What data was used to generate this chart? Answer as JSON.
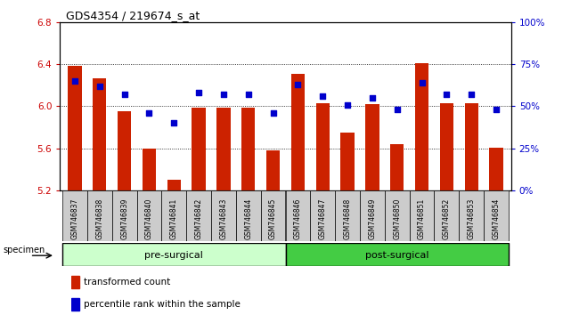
{
  "title": "GDS4354 / 219674_s_at",
  "samples": [
    "GSM746837",
    "GSM746838",
    "GSM746839",
    "GSM746840",
    "GSM746841",
    "GSM746842",
    "GSM746843",
    "GSM746844",
    "GSM746845",
    "GSM746846",
    "GSM746847",
    "GSM746848",
    "GSM746849",
    "GSM746850",
    "GSM746851",
    "GSM746852",
    "GSM746853",
    "GSM746854"
  ],
  "bar_values": [
    6.38,
    6.27,
    5.95,
    5.6,
    5.3,
    5.99,
    5.99,
    5.99,
    5.58,
    6.31,
    6.03,
    5.75,
    6.02,
    5.64,
    6.41,
    6.03,
    6.03,
    5.61
  ],
  "dot_values": [
    65,
    62,
    57,
    46,
    40,
    58,
    57,
    57,
    46,
    63,
    56,
    51,
    55,
    48,
    64,
    57,
    57,
    48
  ],
  "pre_surgical_count": 9,
  "ylim_left": [
    5.2,
    6.8
  ],
  "ylim_right": [
    0,
    100
  ],
  "bar_color": "#CC2200",
  "dot_color": "#0000CC",
  "bar_bottom": 5.2,
  "yticks_left": [
    5.2,
    5.6,
    6.0,
    6.4,
    6.8
  ],
  "yticks_right": [
    0,
    25,
    50,
    75,
    100
  ],
  "ytick_labels_right": [
    "0%",
    "25%",
    "50%",
    "75%",
    "100%"
  ],
  "grid_values": [
    5.6,
    6.0,
    6.4
  ],
  "group_labels": [
    "pre-surgical",
    "post-surgical"
  ],
  "pre_color": "#CCFFCC",
  "post_color": "#44CC44",
  "legend_labels": [
    "transformed count",
    "percentile rank within the sample"
  ],
  "specimen_label": "specimen",
  "left_tick_color": "#CC0000",
  "right_tick_color": "#0000CC",
  "xtick_bg_color": "#CCCCCC"
}
